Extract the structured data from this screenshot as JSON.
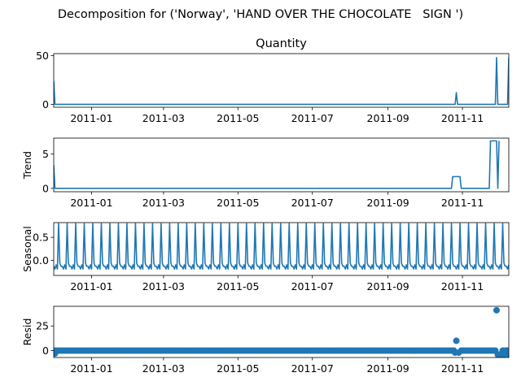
{
  "figure": {
    "suptitle": "Decomposition for ('Norway', 'HAND OVER THE CHOCOLATE   SIGN ')",
    "line_color": "#1f77b4"
  },
  "chart_data": [
    {
      "type": "line",
      "title": "Quantity",
      "ylabel": "",
      "xlim": [
        "2010-12-01",
        "2011-12-09"
      ],
      "ylim": [
        -3,
        52
      ],
      "yticks": [
        0,
        50
      ],
      "xticks": [
        "2011-01",
        "2011-03",
        "2011-05",
        "2011-07",
        "2011-09",
        "2011-11"
      ],
      "points": [
        [
          "2010-12-01",
          24
        ],
        [
          "2010-12-02",
          0
        ],
        [
          "2011-10-26",
          0
        ],
        [
          "2011-10-27",
          12
        ],
        [
          "2011-10-28",
          0
        ],
        [
          "2011-11-28",
          0
        ],
        [
          "2011-11-29",
          48
        ],
        [
          "2011-11-30",
          0
        ],
        [
          "2011-12-08",
          0
        ],
        [
          "2011-12-09",
          48
        ]
      ]
    },
    {
      "type": "line",
      "title": "",
      "ylabel": "Trend",
      "xlim": [
        "2010-12-01",
        "2011-12-09"
      ],
      "ylim": [
        -0.5,
        7.3
      ],
      "yticks": [
        0,
        5
      ],
      "xticks": [
        "2011-01",
        "2011-03",
        "2011-05",
        "2011-07",
        "2011-09",
        "2011-11"
      ],
      "points": [
        [
          "2010-12-01",
          3.4
        ],
        [
          "2010-12-02",
          0
        ],
        [
          "2011-10-23",
          0
        ],
        [
          "2011-10-24",
          1.7
        ],
        [
          "2011-10-30",
          1.7
        ],
        [
          "2011-10-31",
          0
        ],
        [
          "2011-11-23",
          0
        ],
        [
          "2011-11-24",
          6.9
        ],
        [
          "2011-11-29",
          6.9
        ],
        [
          "2011-11-30",
          0
        ],
        [
          "2011-12-01",
          6.9
        ]
      ]
    },
    {
      "type": "line",
      "title": "",
      "ylabel": "Seasonal",
      "xlim": [
        "2010-12-01",
        "2011-12-09"
      ],
      "ylim": [
        -0.33,
        0.82
      ],
      "yticks": [
        0.0,
        0.5
      ],
      "xticks": [
        "2011-01",
        "2011-03",
        "2011-05",
        "2011-07",
        "2011-09",
        "2011-11"
      ],
      "period_days": 7,
      "period_start": "2010-12-01",
      "cycle_values": [
        -0.13,
        -0.19,
        -0.1,
        -0.19,
        0.8,
        -0.06,
        -0.13
      ]
    },
    {
      "type": "scatter",
      "title": "",
      "ylabel": "Resid",
      "xlim": [
        "2010-12-01",
        "2011-12-09"
      ],
      "ylim": [
        -7,
        45
      ],
      "yticks": [
        0,
        25
      ],
      "xticks": [
        "2011-01",
        "2011-03",
        "2011-05",
        "2011-07",
        "2011-09",
        "2011-11"
      ],
      "baseline_start": "2010-12-01",
      "baseline_end": "2011-12-09",
      "baseline_step_days": 2,
      "baseline_value": 0,
      "outliers": [
        [
          "2010-12-02",
          -3
        ],
        [
          "2011-10-26",
          -2
        ],
        [
          "2011-10-27",
          10
        ],
        [
          "2011-10-29",
          -2
        ],
        [
          "2011-11-29",
          41
        ],
        [
          "2011-11-30",
          -4
        ],
        [
          "2011-12-02",
          -4
        ],
        [
          "2011-12-05",
          -4
        ],
        [
          "2011-12-07",
          0
        ],
        [
          "2011-12-09",
          -4
        ]
      ]
    }
  ]
}
